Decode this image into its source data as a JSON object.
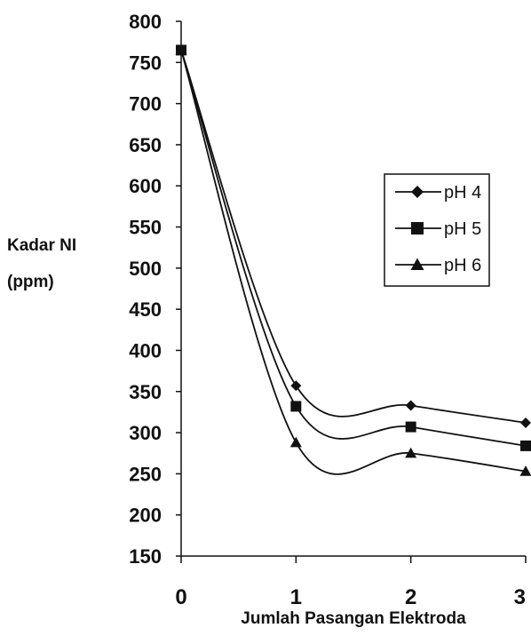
{
  "chart_data": {
    "type": "line",
    "title": "",
    "xlabel": "Jumlah Pasangan Elektroda",
    "ylabel_lines": [
      "Kadar NI",
      "(ppm)"
    ],
    "x": [
      0,
      1,
      2,
      3
    ],
    "x_tick_labels": [
      "0",
      "1",
      "2",
      "3"
    ],
    "xlim": [
      0,
      3
    ],
    "ylim": [
      150,
      800
    ],
    "y_ticks": [
      150,
      200,
      250,
      300,
      350,
      400,
      450,
      500,
      550,
      600,
      650,
      700,
      750,
      800
    ],
    "smooth": true,
    "grid": false,
    "legend_position": "right",
    "series": [
      {
        "name": "pH 4",
        "marker": "diamond",
        "values": [
          765,
          357,
          333,
          312
        ]
      },
      {
        "name": "pH 5",
        "marker": "square",
        "values": [
          765,
          332,
          307,
          284
        ]
      },
      {
        "name": "pH 6",
        "marker": "triangle",
        "values": [
          765,
          288,
          275,
          253
        ]
      }
    ]
  }
}
